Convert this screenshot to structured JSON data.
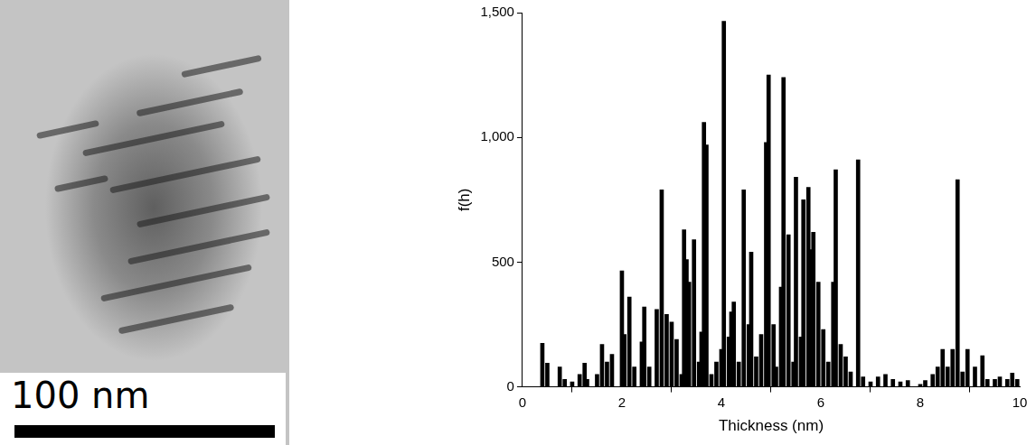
{
  "image": {
    "scale_bar": "100 nm"
  },
  "chart_data": {
    "type": "bar",
    "x_label": "Thickness (nm)",
    "y_label": "f(h)",
    "color": "#000000",
    "grid": false,
    "xlim": [
      0,
      10
    ],
    "xticks": [
      0,
      2,
      4,
      6,
      8,
      10
    ],
    "ylim": [
      0,
      1500
    ],
    "yticks": [
      0,
      500,
      1000,
      1500
    ],
    "x": [
      0.4,
      0.5,
      0.75,
      0.85,
      1.0,
      1.15,
      1.25,
      1.3,
      1.5,
      1.6,
      1.7,
      1.8,
      2.0,
      2.05,
      2.15,
      2.25,
      2.4,
      2.45,
      2.55,
      2.7,
      2.8,
      2.9,
      3.0,
      3.1,
      3.2,
      3.25,
      3.3,
      3.35,
      3.45,
      3.55,
      3.6,
      3.65,
      3.7,
      3.8,
      3.9,
      4.0,
      4.05,
      4.15,
      4.2,
      4.25,
      4.35,
      4.45,
      4.55,
      4.6,
      4.7,
      4.8,
      4.9,
      4.95,
      5.05,
      5.1,
      5.2,
      5.25,
      5.35,
      5.45,
      5.5,
      5.6,
      5.65,
      5.75,
      5.8,
      5.85,
      5.95,
      6.05,
      6.15,
      6.25,
      6.3,
      6.4,
      6.5,
      6.6,
      6.75,
      6.85,
      7.0,
      7.15,
      7.3,
      7.45,
      7.6,
      7.75,
      8.0,
      8.1,
      8.25,
      8.35,
      8.45,
      8.55,
      8.65,
      8.75,
      8.85,
      8.95,
      9.1,
      9.25,
      9.35,
      9.5,
      9.6,
      9.75,
      9.85,
      9.95
    ],
    "values": [
      175,
      95,
      80,
      30,
      20,
      50,
      95,
      30,
      50,
      170,
      100,
      130,
      465,
      210,
      360,
      80,
      180,
      320,
      80,
      310,
      790,
      290,
      260,
      190,
      50,
      630,
      510,
      420,
      590,
      100,
      220,
      1060,
      970,
      50,
      100,
      150,
      1465,
      200,
      300,
      340,
      100,
      790,
      250,
      540,
      120,
      210,
      980,
      1250,
      250,
      80,
      400,
      1240,
      610,
      100,
      840,
      200,
      750,
      800,
      550,
      620,
      420,
      230,
      100,
      420,
      870,
      170,
      120,
      60,
      910,
      40,
      20,
      40,
      50,
      30,
      20,
      25,
      10,
      25,
      50,
      80,
      150,
      80,
      150,
      830,
      60,
      150,
      80,
      125,
      30,
      30,
      40,
      30,
      55,
      30
    ]
  }
}
